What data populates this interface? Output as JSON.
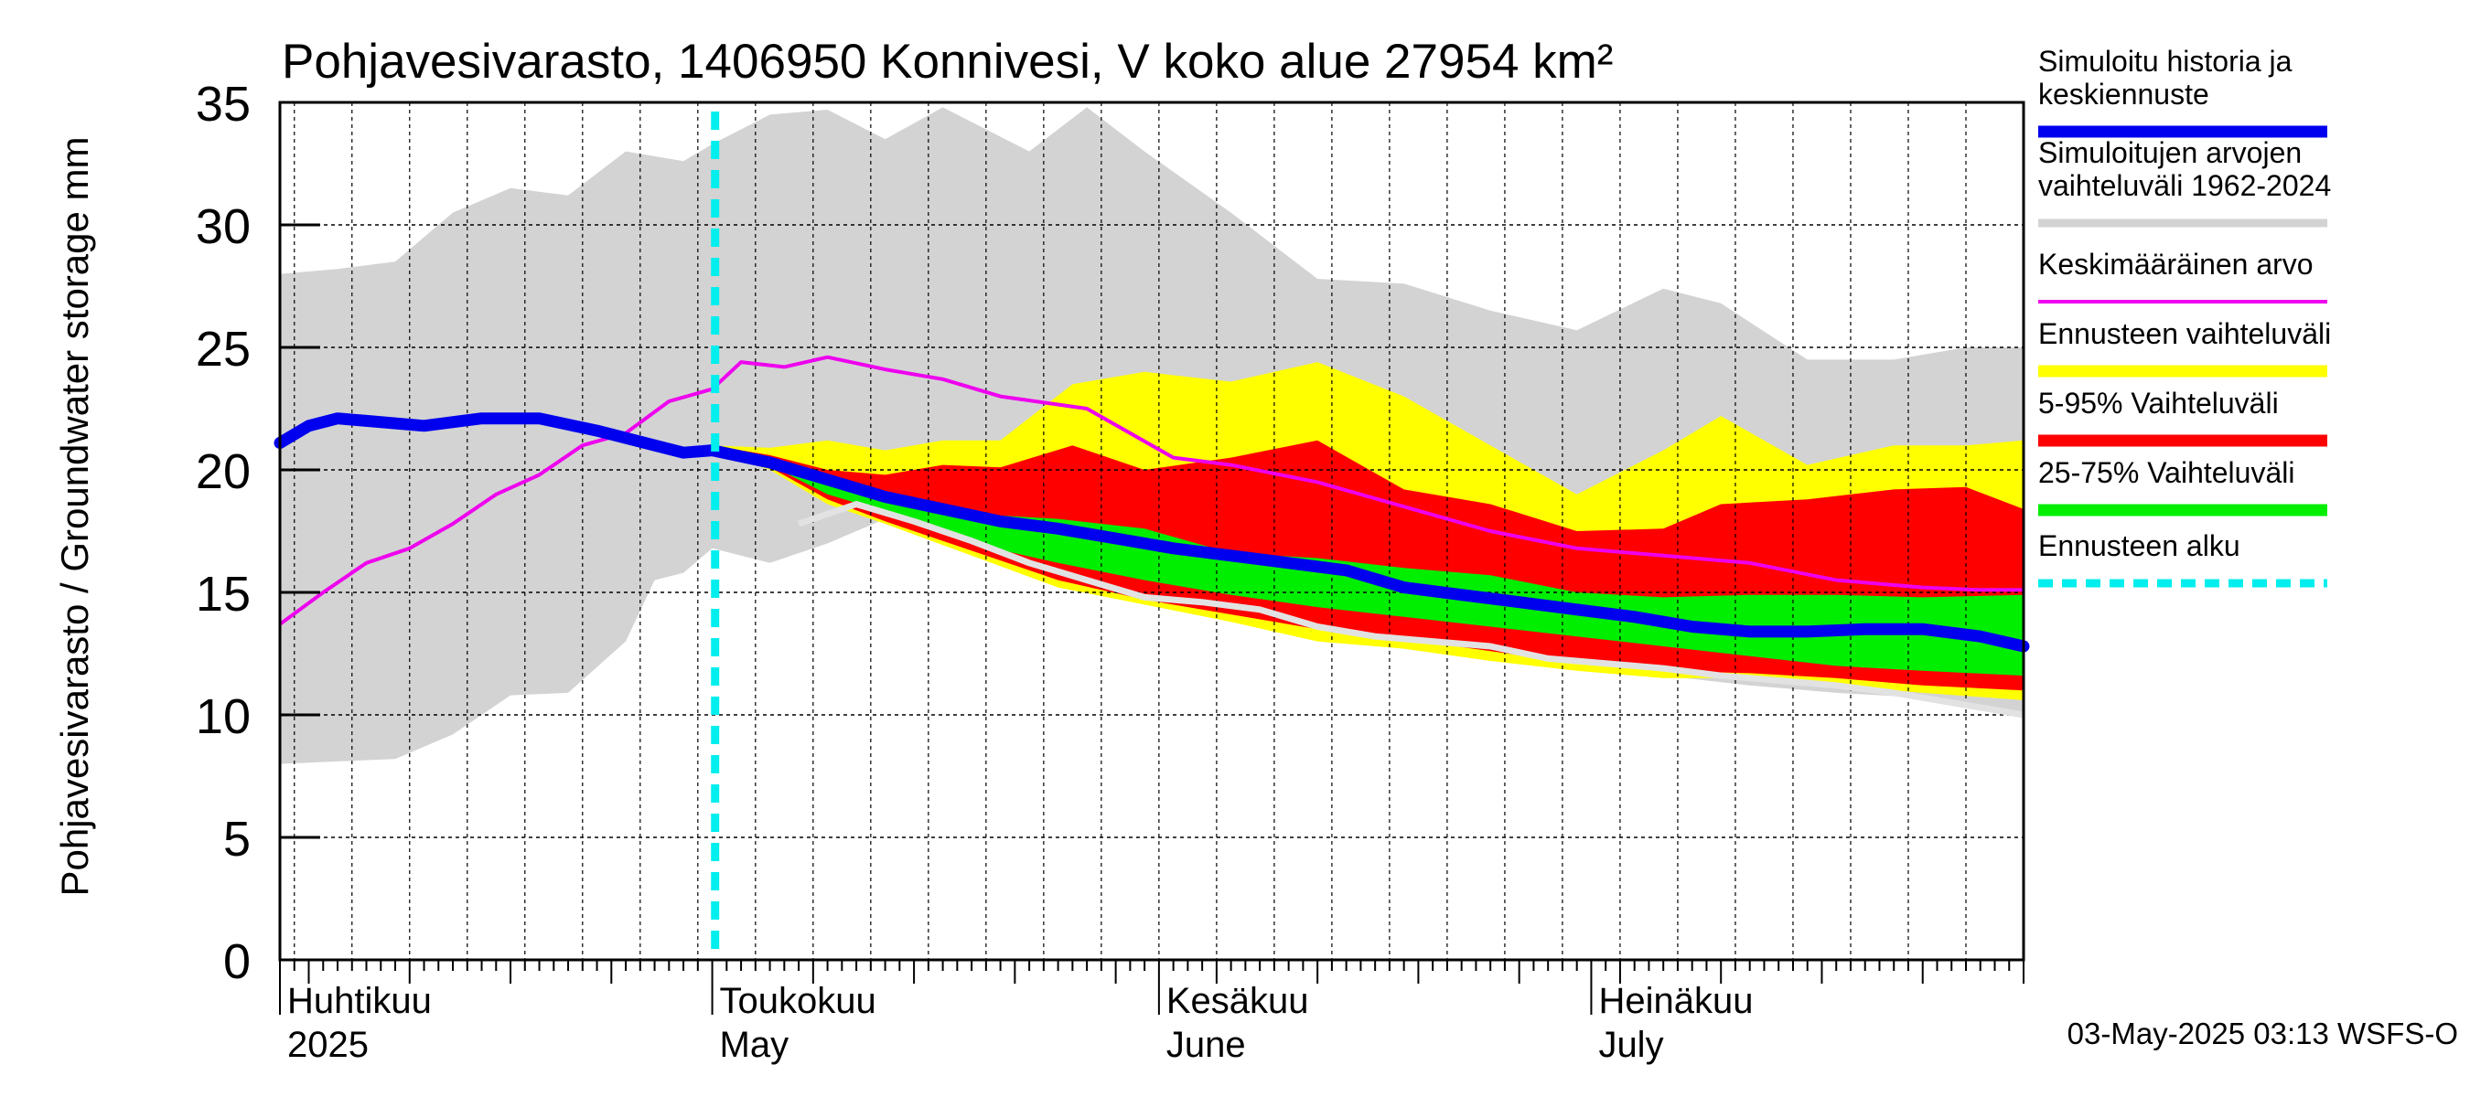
{
  "chart_data": {
    "type": "area",
    "title": "Pohjavesivarasto, 1406950 Konnivesi, V koko alue 27954 km²",
    "ylabel": "Pohjavesivarasto / Groundwater storage   mm",
    "ylim": [
      0,
      35
    ],
    "yticks": [
      "0",
      "5",
      "10",
      "15",
      "20",
      "25",
      "30",
      "35"
    ],
    "x_domain_days": [
      0,
      121
    ],
    "month_labels": [
      {
        "day": 0,
        "fi": "Huhtikuu",
        "en": "2025"
      },
      {
        "day": 30,
        "fi": "Toukokuu",
        "en": "May"
      },
      {
        "day": 61,
        "fi": "Kesäkuu",
        "en": "June"
      },
      {
        "day": 91,
        "fi": "Heinäkuu",
        "en": "July"
      }
    ],
    "forecast_start_day": 30.2,
    "timestamp": "03-May-2025 03:13 WSFS-O",
    "legend": [
      {
        "label": "Simuloitu historia ja keskiennuste",
        "color": "#0000ee"
      },
      {
        "label": "Simuloitujen arvojen vaihteluväli 1962-2024",
        "color": "#d3d3d3"
      },
      {
        "label": "Keskimääräinen arvo",
        "color": "#ee00ee"
      },
      {
        "label": "Ennusteen vaihteluväli",
        "color": "#ffff00"
      },
      {
        "label": "5-95% Vaihteluväli",
        "color": "#ff0000"
      },
      {
        "label": "25-75% Vaihteluväli",
        "color": "#00ee00"
      },
      {
        "label": "Ennusteen alku",
        "color": "#00eeee"
      }
    ],
    "series": [
      {
        "name": "hist_range_upper",
        "x": [
          0,
          4,
          8,
          12,
          16,
          20,
          24,
          28,
          30,
          34,
          38,
          42,
          46,
          52,
          56,
          60,
          66,
          72,
          78,
          84,
          90,
          96,
          100,
          106,
          112,
          117,
          121
        ],
        "values": [
          28,
          28.2,
          28.5,
          30.5,
          31.5,
          31.2,
          33,
          32.6,
          33.3,
          34.5,
          34.7,
          33.5,
          34.8,
          33,
          34.8,
          33,
          30.5,
          27.8,
          27.6,
          26.5,
          25.7,
          27.4,
          26.8,
          24.5,
          24.5,
          25,
          25
        ]
      },
      {
        "name": "hist_range_lower",
        "x": [
          0,
          4,
          8,
          12,
          16,
          20,
          24,
          26,
          28,
          30,
          34,
          38,
          42,
          48,
          54,
          60,
          66,
          72,
          78,
          84,
          90,
          96,
          102,
          108,
          114,
          121
        ],
        "values": [
          8,
          8.1,
          8.2,
          9.2,
          10.8,
          10.9,
          13,
          15.5,
          15.8,
          16.8,
          16.2,
          17,
          18,
          17.5,
          16.3,
          15.5,
          14.5,
          13.7,
          13,
          12.5,
          12,
          11.6,
          11.2,
          10.9,
          10.7,
          10
        ]
      },
      {
        "name": "forecast_range_upper",
        "x": [
          30,
          34,
          38,
          42,
          46,
          50,
          55,
          60,
          66,
          72,
          78,
          84,
          90,
          96,
          100,
          106,
          112,
          117,
          121
        ],
        "values": [
          21,
          20.9,
          21.2,
          20.8,
          21.2,
          21.2,
          23.5,
          24,
          23.6,
          24.4,
          23,
          21,
          19,
          20.8,
          22.2,
          20.2,
          21,
          21,
          21.2
        ]
      },
      {
        "name": "forecast_range_lower",
        "x": [
          30,
          34,
          38,
          42,
          48,
          54,
          60,
          66,
          72,
          78,
          84,
          90,
          96,
          102,
          108,
          114,
          121
        ],
        "values": [
          20.8,
          20,
          18.6,
          17.8,
          16.5,
          15.2,
          14.5,
          13.8,
          13,
          12.7,
          12.2,
          11.8,
          11.5,
          11.5,
          11.2,
          10.9,
          10.6
        ]
      },
      {
        "name": "p95",
        "x": [
          30,
          34,
          38,
          42,
          46,
          50,
          55,
          60,
          66,
          72,
          78,
          84,
          90,
          96,
          100,
          106,
          112,
          117,
          121
        ],
        "values": [
          21,
          20.6,
          20,
          19.8,
          20.2,
          20.1,
          21,
          20,
          20.5,
          21.2,
          19.2,
          18.6,
          17.5,
          17.6,
          18.6,
          18.8,
          19.2,
          19.3,
          18.4
        ]
      },
      {
        "name": "p05",
        "x": [
          30,
          34,
          38,
          42,
          48,
          54,
          60,
          66,
          72,
          78,
          84,
          90,
          96,
          102,
          108,
          114,
          121
        ],
        "values": [
          20.8,
          20.1,
          18.8,
          17.9,
          16.7,
          15.5,
          14.7,
          14.1,
          13.5,
          13.1,
          12.6,
          12.1,
          11.8,
          11.7,
          11.5,
          11.2,
          11
        ]
      },
      {
        "name": "p75",
        "x": [
          30,
          34,
          38,
          42,
          48,
          54,
          60,
          66,
          72,
          78,
          84,
          90,
          96,
          102,
          108,
          114,
          121
        ],
        "values": [
          20.9,
          20.4,
          19.5,
          19.1,
          18.2,
          18,
          17.6,
          16.6,
          16.4,
          16,
          15.7,
          15,
          14.8,
          14.9,
          14.9,
          14.8,
          14.9
        ]
      },
      {
        "name": "p25",
        "x": [
          30,
          34,
          38,
          42,
          48,
          54,
          60,
          66,
          72,
          78,
          84,
          90,
          96,
          102,
          108,
          114,
          121
        ],
        "values": [
          20.8,
          20.2,
          19,
          18.3,
          17,
          16.2,
          15.5,
          14.9,
          14.4,
          14,
          13.6,
          13.2,
          12.8,
          12.4,
          12,
          11.8,
          11.6
        ]
      },
      {
        "name": "Simuloitu historia ja keskiennuste",
        "x": [
          0,
          2,
          4,
          6,
          10,
          14,
          18,
          22,
          26,
          28,
          30,
          34,
          38,
          42,
          46,
          50,
          54,
          58,
          62,
          66,
          70,
          74,
          78,
          82,
          86,
          90,
          94,
          98,
          102,
          106,
          110,
          114,
          118,
          121
        ],
        "values": [
          21.1,
          21.8,
          22.1,
          22,
          21.8,
          22.1,
          22.1,
          21.6,
          21,
          20.7,
          20.8,
          20.3,
          19.6,
          18.9,
          18.4,
          17.9,
          17.6,
          17.2,
          16.8,
          16.5,
          16.2,
          15.9,
          15.2,
          14.9,
          14.6,
          14.3,
          14,
          13.6,
          13.4,
          13.4,
          13.5,
          13.5,
          13.2,
          12.8
        ]
      },
      {
        "name": "Keskimääräinen arvo",
        "x": [
          0,
          3,
          6,
          9,
          12,
          15,
          18,
          21,
          24,
          27,
          30,
          32,
          35,
          38,
          42,
          46,
          50,
          56,
          62,
          66,
          72,
          78,
          84,
          90,
          96,
          102,
          108,
          114,
          118,
          121
        ],
        "values": [
          13.7,
          15,
          16.2,
          16.8,
          17.8,
          19,
          19.8,
          21,
          21.5,
          22.8,
          23.3,
          24.4,
          24.2,
          24.6,
          24.1,
          23.7,
          23,
          22.5,
          20.5,
          20.2,
          19.5,
          18.5,
          17.5,
          16.8,
          16.5,
          16.2,
          15.5,
          15.2,
          15.1,
          15.1
        ]
      },
      {
        "name": "observation_history",
        "x": [
          36,
          40,
          44,
          48,
          52,
          56,
          60,
          64,
          68,
          72,
          76,
          80,
          84,
          88,
          92,
          96,
          100,
          104,
          108,
          112,
          116,
          121
        ],
        "values": [
          17.8,
          18.6,
          17.9,
          17.1,
          16.2,
          15.5,
          14.8,
          14.6,
          14.3,
          13.6,
          13.2,
          13,
          12.8,
          12.3,
          12.1,
          11.9,
          11.6,
          11.4,
          11.2,
          10.9,
          10.5,
          10
        ]
      }
    ]
  }
}
